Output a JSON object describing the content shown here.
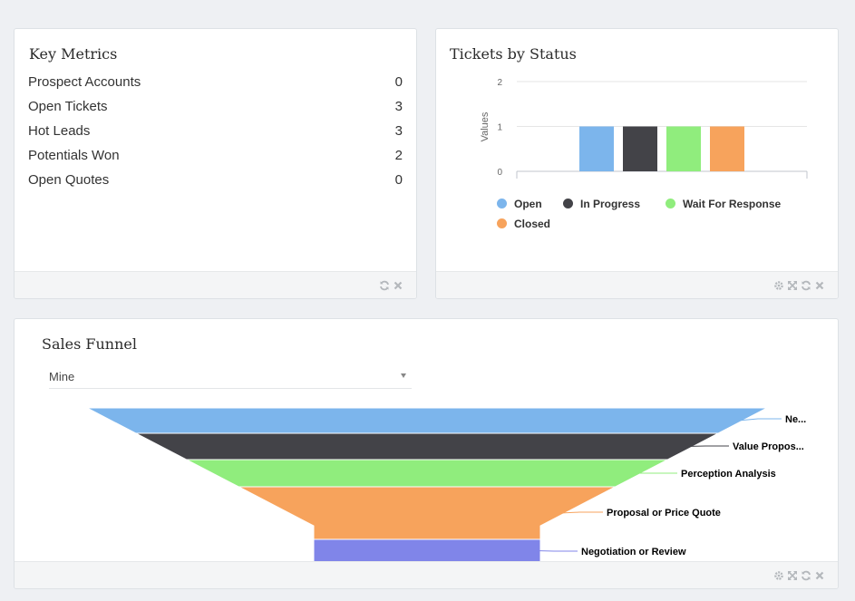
{
  "key_metrics": {
    "title": "Key Metrics",
    "rows": [
      {
        "label": "Prospect Accounts",
        "value": "0"
      },
      {
        "label": "Open Tickets",
        "value": "3"
      },
      {
        "label": "Hot Leads",
        "value": "3"
      },
      {
        "label": "Potentials Won",
        "value": "2"
      },
      {
        "label": "Open Quotes",
        "value": "0"
      }
    ],
    "footer_icons": [
      "refresh-icon",
      "close-icon"
    ]
  },
  "tickets_by_status": {
    "title": "Tickets by Status",
    "footer_icons": [
      "gear-icon",
      "expand-icon",
      "refresh-icon",
      "close-icon"
    ],
    "chart_data": {
      "type": "bar",
      "categories": [
        "Open",
        "In Progress",
        "Wait For Response",
        "Closed"
      ],
      "values": [
        1,
        1,
        1,
        1
      ],
      "colors": [
        "#7cb5ec",
        "#434348",
        "#90ed7d",
        "#f7a35c"
      ],
      "ylabel": "Values",
      "yticks": [
        "0",
        "1",
        "2"
      ],
      "ylim": [
        0,
        2
      ],
      "legend_position": "bottom",
      "grid": true
    }
  },
  "sales_funnel": {
    "title": "Sales Funnel",
    "filter": {
      "selected": "Mine"
    },
    "footer_icons": [
      "gear-icon",
      "expand-icon",
      "refresh-icon",
      "close-icon"
    ],
    "chart_data": {
      "type": "funnel",
      "stages": [
        {
          "label": "Ne...",
          "color": "#7cb5ec"
        },
        {
          "label": "Value Propos...",
          "color": "#434348"
        },
        {
          "label": "Perception Analysis",
          "color": "#90ed7d"
        },
        {
          "label": "Proposal or Price Quote",
          "color": "#f7a35c"
        },
        {
          "label": "Negotiation or Review",
          "color": "#8085e9"
        }
      ]
    }
  }
}
